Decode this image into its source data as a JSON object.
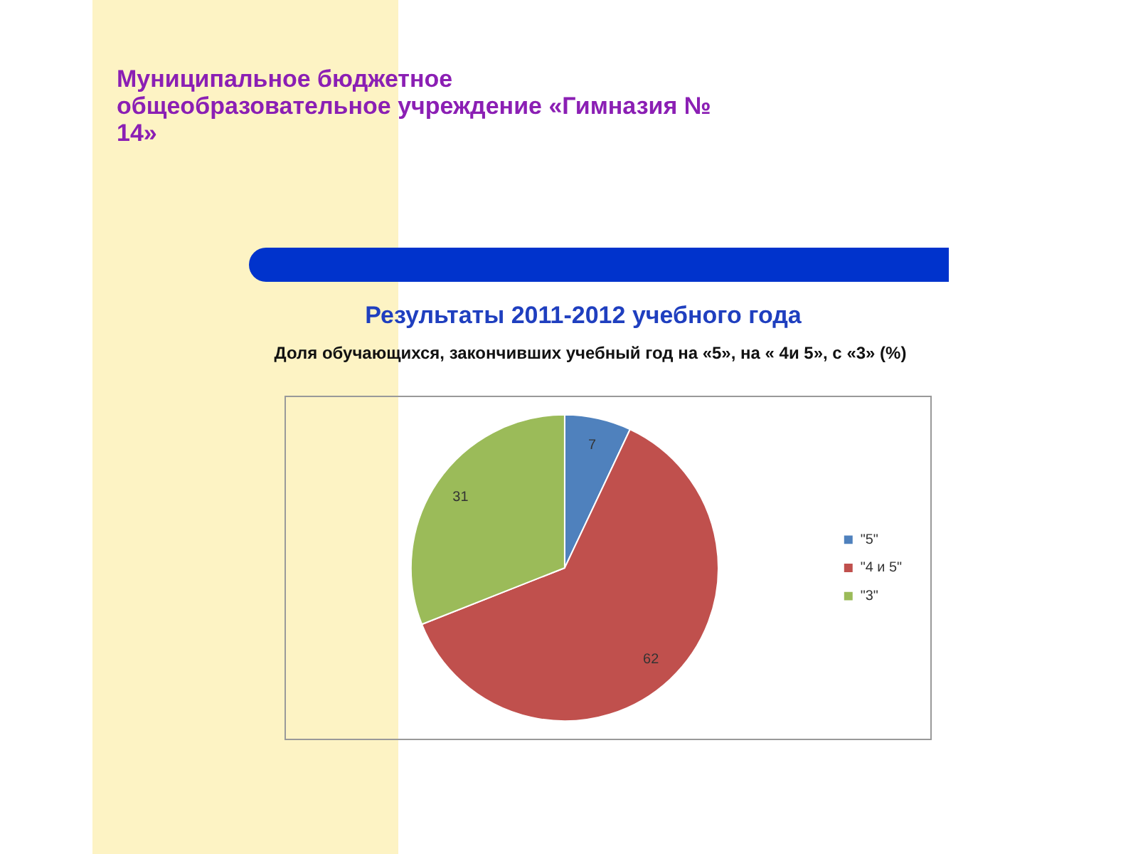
{
  "chart_data": {
    "type": "pie",
    "title": "Результаты 2011-2012 учебного года",
    "subtitle": "Доля обучающихся, закончивших учебный год на «5», на « 4и 5», с «3» (%)",
    "annotations": [
      "Муниципальное бюджетное общеобразовательное учреждение «Гимназия № 14»"
    ],
    "categories": [
      "\"5\"",
      "\"4 и 5\"",
      "\"3\""
    ],
    "values": [
      7,
      62,
      31
    ],
    "colors": [
      "#4f81bd",
      "#c0504d",
      "#9bbb59"
    ],
    "data_labels": true,
    "legend": "right"
  }
}
